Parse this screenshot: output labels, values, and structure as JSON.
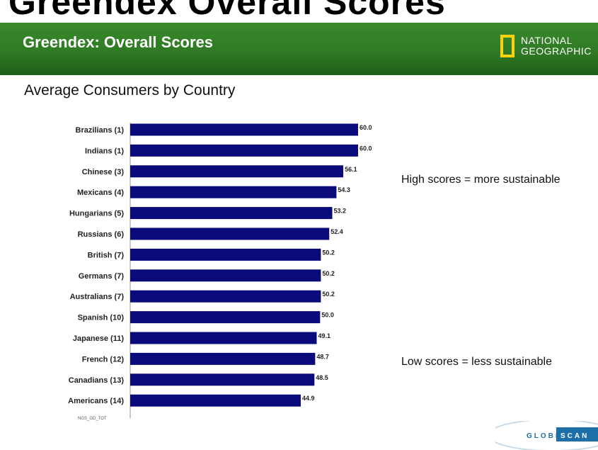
{
  "header": {
    "top_title": "Greendex Overall Scores",
    "banner_title": "Greendex: Overall Scores",
    "logo_text": [
      "NATIONAL",
      "GEOGRAPHIC"
    ]
  },
  "notes": {
    "high": "High scores = more sustainable",
    "low": "Low scores = less sustainable"
  },
  "source_code": "NGS_GD_TOT",
  "footer_logo": [
    "GLOBE",
    "SCAN"
  ],
  "colors": {
    "bar": "#0a0a7a",
    "banner": "#2f7a24",
    "logo_frame": "#ffd200",
    "globescan": "#1e6fa8"
  },
  "chart_data": {
    "type": "bar",
    "orientation": "horizontal",
    "title": "Average Consumers by Country",
    "categories": [
      "Brazilians (1)",
      "Indians (1)",
      "Chinese (3)",
      "Mexicans (4)",
      "Hungarians (5)",
      "Russians (6)",
      "British (7)",
      "Germans (7)",
      "Australians (7)",
      "Spanish (10)",
      "Japanese (11)",
      "French (12)",
      "Canadians (13)",
      "Americans (14)"
    ],
    "values": [
      60.0,
      60.0,
      56.1,
      54.3,
      53.2,
      52.4,
      50.2,
      50.2,
      50.2,
      50.0,
      49.1,
      48.7,
      48.5,
      44.9
    ],
    "value_labels": [
      "60.0",
      "60.0",
      "56.1",
      "54.3",
      "53.2",
      "52.4",
      "50.2",
      "50.2",
      "50.2",
      "50.0",
      "49.1",
      "48.7",
      "48.5",
      "44.9"
    ],
    "xlabel": "",
    "ylabel": "",
    "xlim": [
      0,
      60
    ],
    "grid": false,
    "legend": "none"
  }
}
